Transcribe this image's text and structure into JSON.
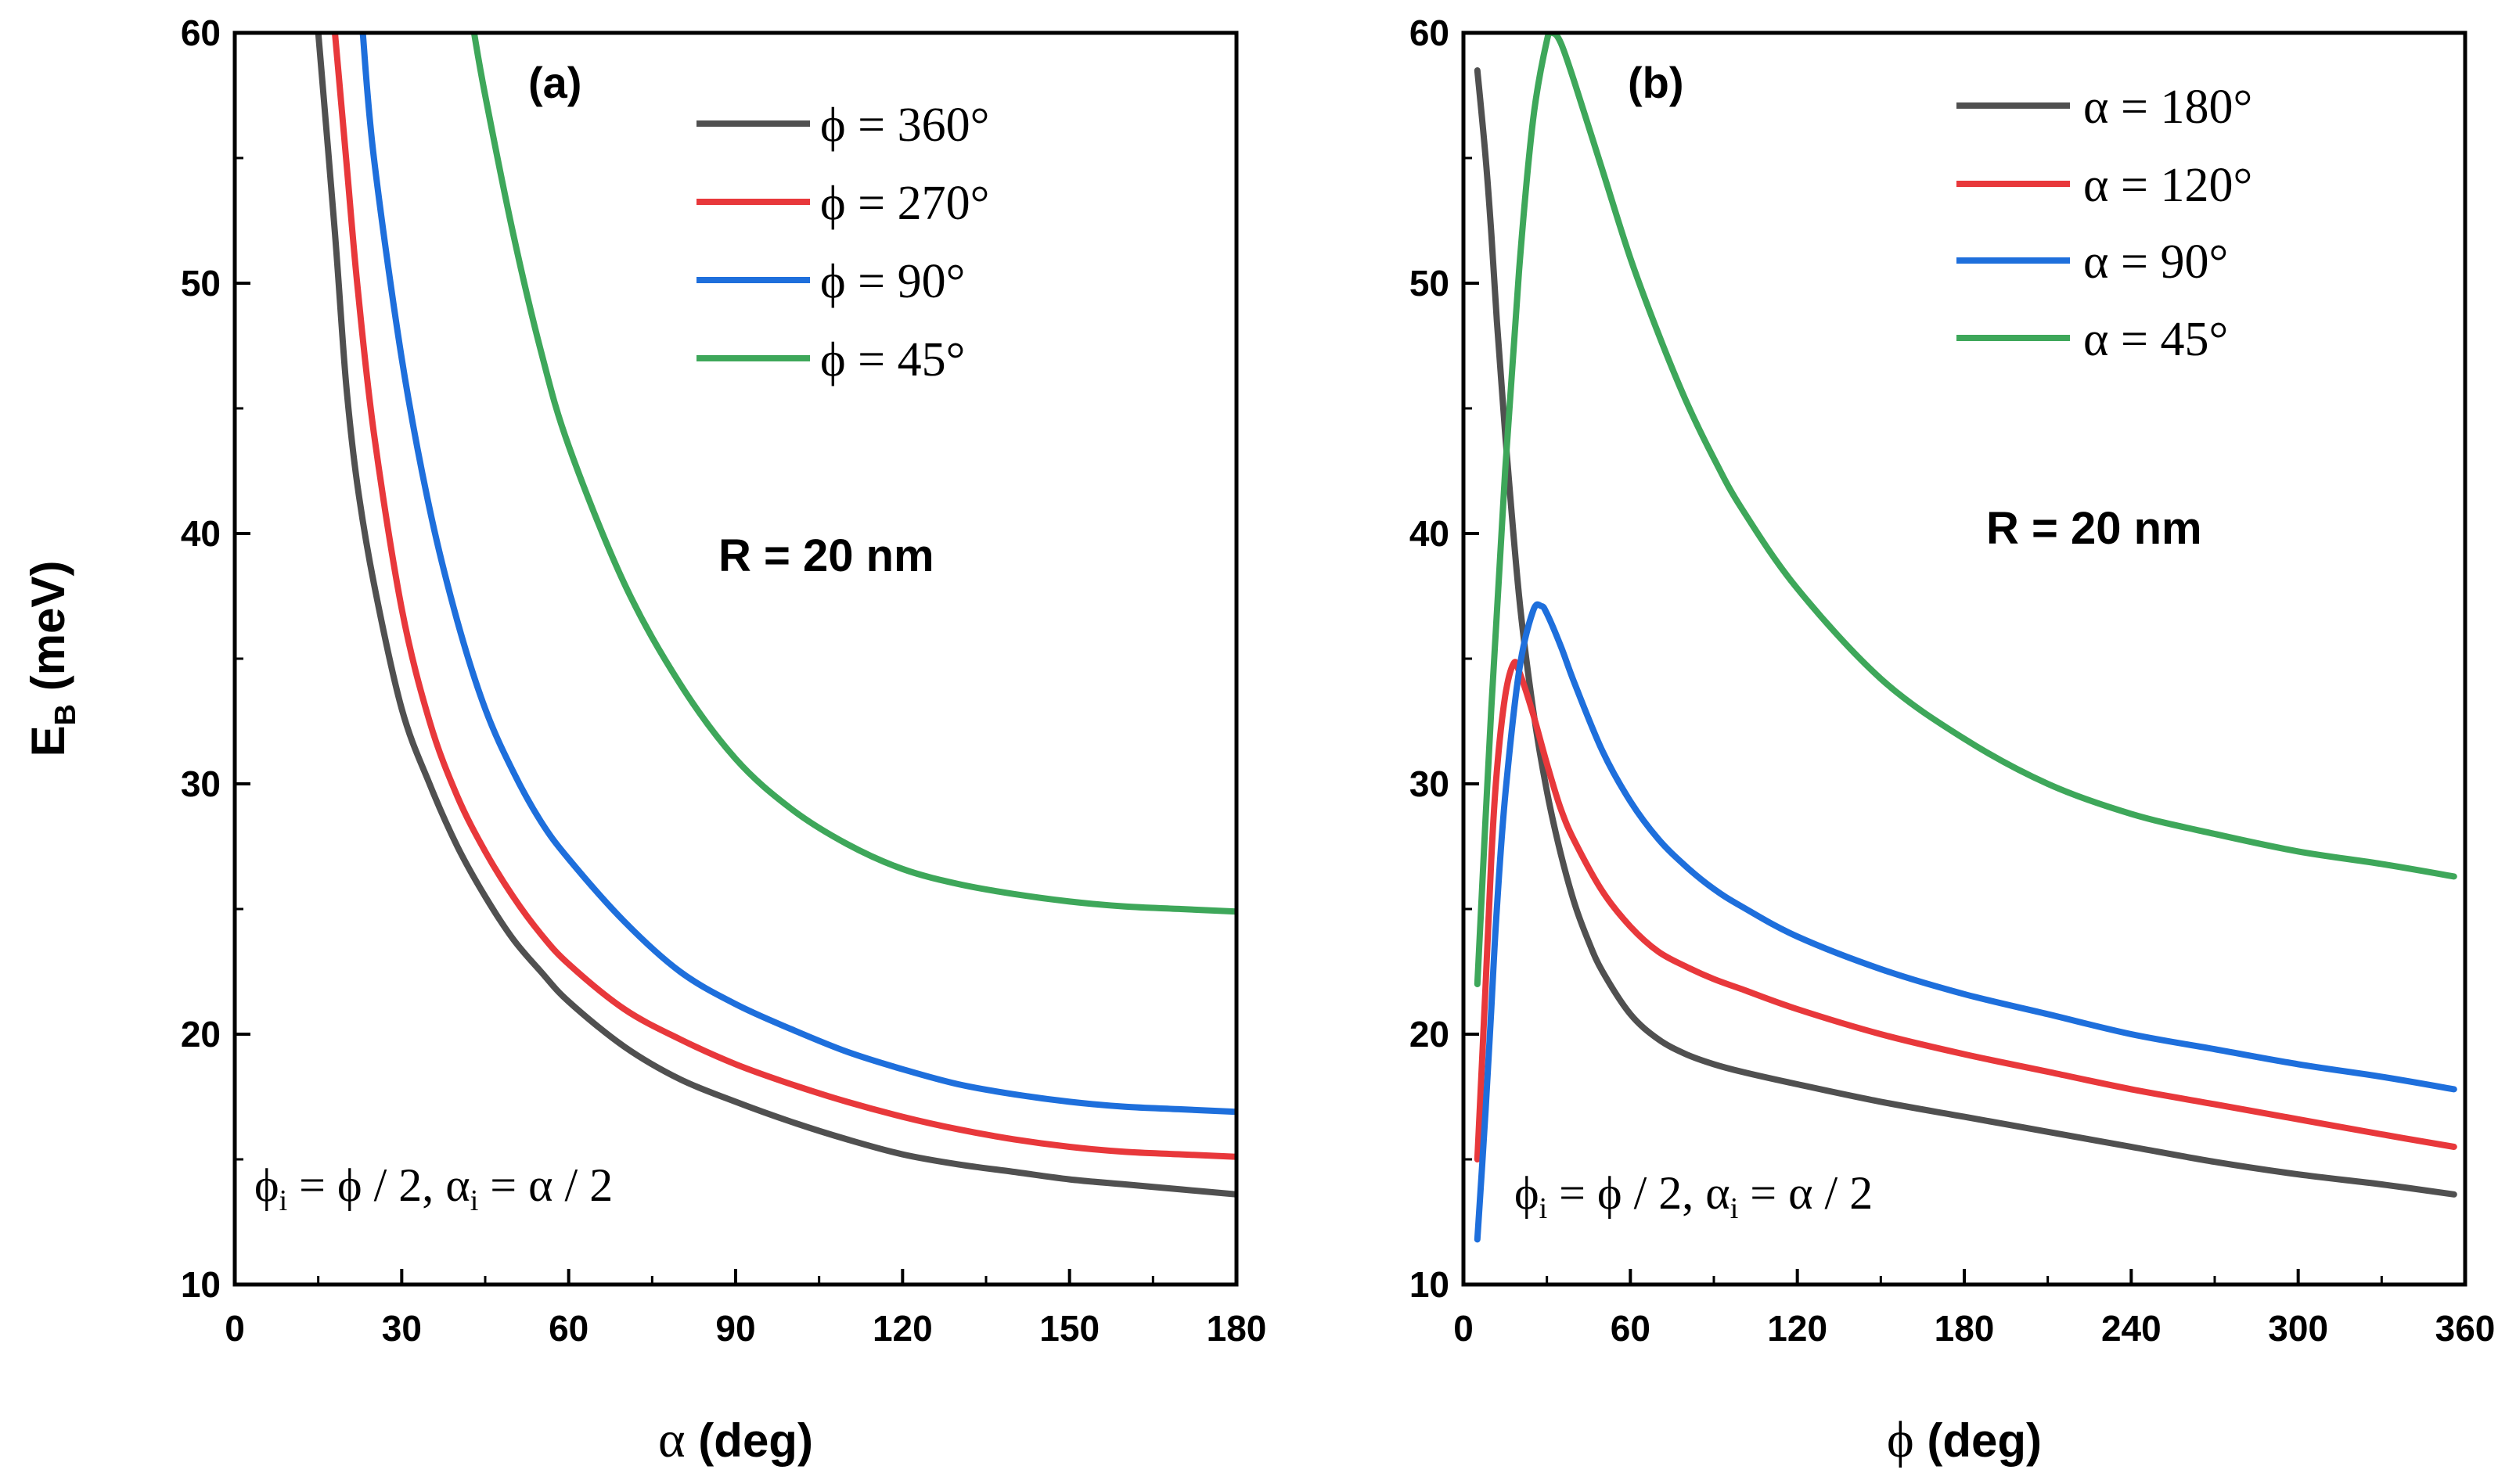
{
  "chart_data": [
    {
      "type": "line",
      "panel": "(a)",
      "xlabel": "α (deg)",
      "ylabel": "E_B (meV)",
      "xlim": [
        0,
        180
      ],
      "ylim": [
        10,
        60
      ],
      "xticks": [
        0,
        30,
        60,
        90,
        120,
        150,
        180
      ],
      "yticks": [
        10,
        20,
        30,
        40,
        50,
        60
      ],
      "annotation": "R = 20 nm",
      "formula": {
        "phi": "ϕ",
        "sub": "i",
        "mid": " = ϕ / 2, ",
        "alpha": "α",
        "end": " = α / 2"
      },
      "legend_position": "top-right",
      "series": [
        {
          "name": "ϕ = 360°",
          "color": "#505050",
          "x": [
            15,
            18,
            20,
            22,
            25,
            30,
            35,
            40,
            45,
            50,
            55,
            60,
            70,
            80,
            90,
            100,
            110,
            120,
            130,
            140,
            150,
            160,
            170,
            180
          ],
          "y": [
            60,
            52,
            46,
            42,
            38,
            33,
            30,
            27.5,
            25.5,
            23.8,
            22.5,
            21.3,
            19.5,
            18.2,
            17.3,
            16.5,
            15.8,
            15.2,
            14.8,
            14.5,
            14.2,
            14,
            13.8,
            13.6
          ]
        },
        {
          "name": "ϕ = 270°",
          "color": "#e8383b",
          "x": [
            18,
            20,
            22,
            25,
            30,
            35,
            40,
            45,
            50,
            55,
            60,
            70,
            80,
            90,
            100,
            110,
            120,
            130,
            140,
            150,
            160,
            170,
            180
          ],
          "y": [
            60,
            55,
            50,
            44,
            37,
            32.5,
            29.5,
            27.3,
            25.5,
            24,
            22.8,
            21,
            19.8,
            18.8,
            18,
            17.3,
            16.7,
            16.2,
            15.8,
            15.5,
            15.3,
            15.2,
            15.1
          ]
        },
        {
          "name": "ϕ = 90°",
          "color": "#1e6fdc",
          "x": [
            23,
            25,
            30,
            35,
            40,
            45,
            50,
            55,
            60,
            70,
            80,
            90,
            100,
            110,
            120,
            130,
            140,
            150,
            160,
            170,
            180
          ],
          "y": [
            60,
            55,
            47,
            41,
            36.5,
            33,
            30.5,
            28.5,
            27,
            24.5,
            22.5,
            21.2,
            20.2,
            19.3,
            18.6,
            18,
            17.6,
            17.3,
            17.1,
            17,
            16.9
          ]
        },
        {
          "name": "ϕ = 45°",
          "color": "#3ea75a",
          "x": [
            43,
            45,
            50,
            55,
            60,
            70,
            80,
            90,
            100,
            110,
            120,
            130,
            140,
            150,
            160,
            170,
            180
          ],
          "y": [
            60,
            57.5,
            52,
            47.3,
            43.5,
            38,
            34,
            31,
            29,
            27.6,
            26.6,
            26,
            25.6,
            25.3,
            25.1,
            25,
            24.9
          ]
        }
      ]
    },
    {
      "type": "line",
      "panel": "(b)",
      "xlabel": "ϕ (deg)",
      "ylabel": "",
      "xlim": [
        0,
        360
      ],
      "ylim": [
        10,
        60
      ],
      "xticks": [
        0,
        60,
        120,
        180,
        240,
        300,
        360
      ],
      "yticks": [
        10,
        20,
        30,
        40,
        50,
        60
      ],
      "annotation": "R = 20 nm",
      "formula": {
        "phi": "ϕ",
        "sub": "i",
        "mid": " = ϕ / 2, ",
        "alpha": "α",
        "end": " = α / 2"
      },
      "legend_position": "top-right",
      "series": [
        {
          "name": "α = 180°",
          "color": "#505050",
          "x": [
            5,
            8,
            10,
            12,
            15,
            20,
            25,
            30,
            35,
            40,
            45,
            50,
            60,
            70,
            80,
            90,
            100,
            120,
            150,
            180,
            210,
            240,
            270,
            300,
            330,
            356
          ],
          "y": [
            58.5,
            55,
            52,
            48.5,
            44,
            37.5,
            33,
            29.7,
            27.2,
            25.2,
            23.7,
            22.5,
            20.8,
            19.8,
            19.2,
            18.8,
            18.5,
            18,
            17.3,
            16.7,
            16.1,
            15.5,
            14.9,
            14.4,
            14,
            13.6
          ]
        },
        {
          "name": "α = 120°",
          "color": "#e8383b",
          "x": [
            5,
            8,
            10,
            12,
            15,
            18,
            20,
            25,
            30,
            35,
            40,
            50,
            60,
            70,
            80,
            90,
            100,
            120,
            150,
            180,
            210,
            240,
            270,
            300,
            330,
            356
          ],
          "y": [
            15,
            22,
            27,
            30.5,
            33.5,
            34.8,
            34.5,
            32.8,
            30.8,
            29,
            27.7,
            25.7,
            24.3,
            23.3,
            22.7,
            22.2,
            21.8,
            21,
            20,
            19.2,
            18.5,
            17.8,
            17.2,
            16.6,
            16,
            15.5
          ]
        },
        {
          "name": "α = 90°",
          "color": "#1e6fdc",
          "x": [
            5,
            8,
            10,
            12,
            15,
            20,
            25,
            28,
            30,
            35,
            40,
            50,
            60,
            70,
            80,
            90,
            100,
            120,
            150,
            180,
            210,
            240,
            270,
            300,
            330,
            356
          ],
          "y": [
            11.8,
            17,
            21,
            25,
            29.5,
            34.5,
            36.9,
            37.1,
            36.8,
            35.5,
            34,
            31.3,
            29.3,
            27.8,
            26.7,
            25.8,
            25.1,
            23.9,
            22.6,
            21.6,
            20.8,
            20,
            19.4,
            18.8,
            18.3,
            17.8
          ]
        },
        {
          "name": "α = 45°",
          "color": "#3ea75a",
          "x": [
            5,
            10,
            15,
            20,
            25,
            30,
            32,
            35,
            40,
            50,
            60,
            70,
            80,
            90,
            100,
            120,
            150,
            180,
            210,
            240,
            270,
            300,
            330,
            356
          ],
          "y": [
            22,
            33,
            42.5,
            50.5,
            56.5,
            59.7,
            60,
            59.6,
            58,
            54.5,
            51,
            48,
            45.3,
            43,
            41,
            37.8,
            34.2,
            31.8,
            30,
            28.8,
            28,
            27.3,
            26.8,
            26.3
          ]
        }
      ]
    }
  ]
}
